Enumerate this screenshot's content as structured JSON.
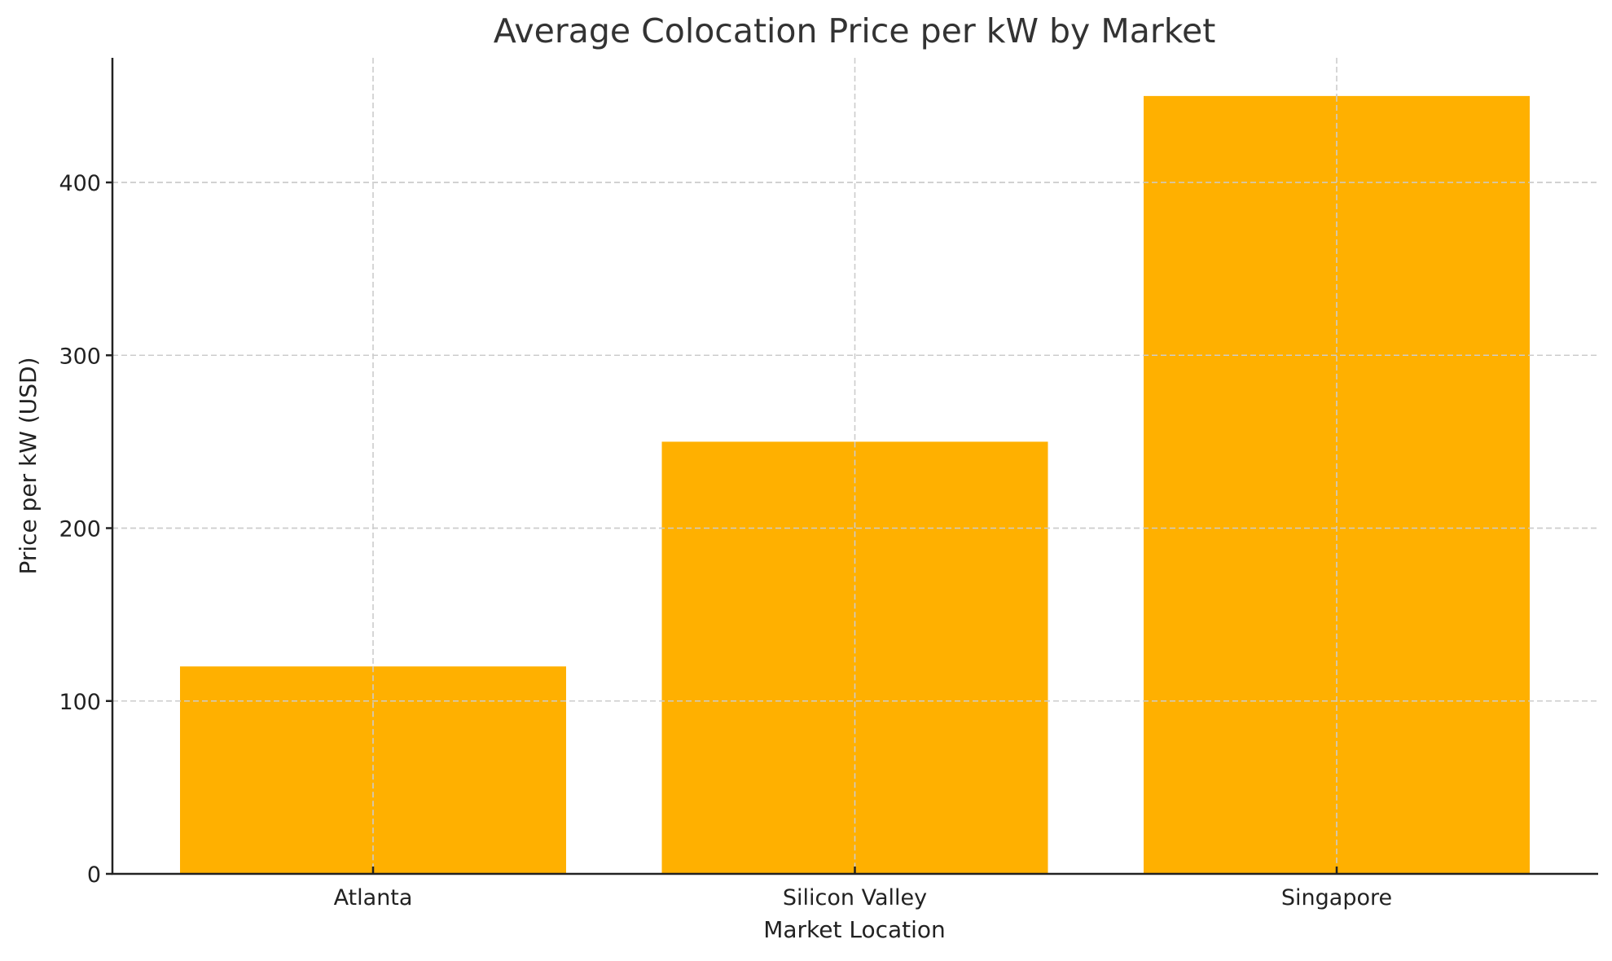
{
  "chart_data": {
    "type": "bar",
    "title": "Average Colocation Price per kW by Market",
    "xlabel": "Market Location",
    "ylabel": "Price per kW (USD)",
    "categories": [
      "Atlanta",
      "Silicon Valley",
      "Singapore"
    ],
    "values": [
      120,
      250,
      450
    ],
    "ylim": [
      0,
      472
    ],
    "yticks": [
      0,
      100,
      200,
      300,
      400
    ],
    "grid": true,
    "grid_style": "dashed",
    "legend": null,
    "bar_color": "#FFB000"
  },
  "colors": {
    "bar": "#FFB000",
    "grid": "#cccccc",
    "axis": "#222222",
    "title": "#333333"
  }
}
